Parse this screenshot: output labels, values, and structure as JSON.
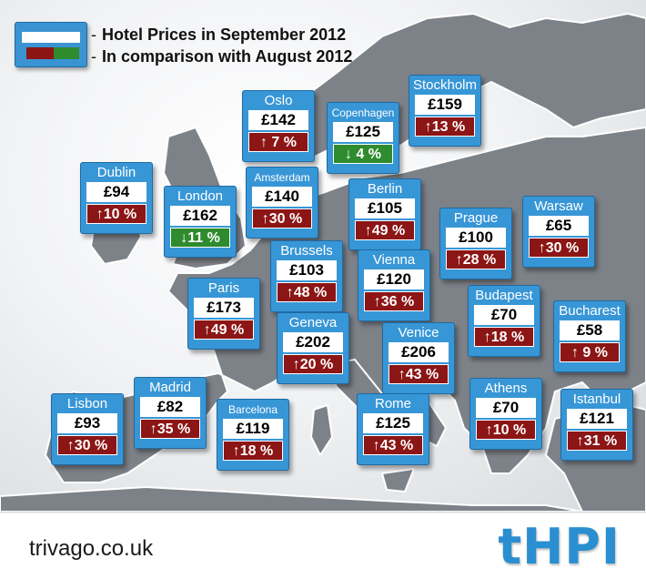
{
  "legend": {
    "title": "Hotel Prices in September 2012",
    "subtitle": "In comparison with August 2012",
    "colors": {
      "increase": "#8c1515",
      "decrease": "#2e8b2e",
      "card": "#3796d6"
    }
  },
  "cities": [
    {
      "id": "oslo",
      "name": "Oslo",
      "price": "£142",
      "change": "↑ 7 %",
      "direction": "up"
    },
    {
      "id": "copenhagen",
      "name": "Copenhagen",
      "price": "£125",
      "change": "↓ 4 %",
      "direction": "down"
    },
    {
      "id": "stockholm",
      "name": "Stockholm",
      "price": "£159",
      "change": "↑13 %",
      "direction": "up"
    },
    {
      "id": "dublin",
      "name": "Dublin",
      "price": "£94",
      "change": "↑10 %",
      "direction": "up"
    },
    {
      "id": "london",
      "name": "London",
      "price": "£162",
      "change": "↓11 %",
      "direction": "down"
    },
    {
      "id": "amsterdam",
      "name": "Amsterdam",
      "price": "£140",
      "change": "↑30 %",
      "direction": "up"
    },
    {
      "id": "berlin",
      "name": "Berlin",
      "price": "£105",
      "change": "↑49 %",
      "direction": "up"
    },
    {
      "id": "prague",
      "name": "Prague",
      "price": "£100",
      "change": "↑28 %",
      "direction": "up"
    },
    {
      "id": "warsaw",
      "name": "Warsaw",
      "price": "£65",
      "change": "↑30 %",
      "direction": "up"
    },
    {
      "id": "brussels",
      "name": "Brussels",
      "price": "£103",
      "change": "↑48 %",
      "direction": "up"
    },
    {
      "id": "vienna",
      "name": "Vienna",
      "price": "£120",
      "change": "↑36 %",
      "direction": "up"
    },
    {
      "id": "paris",
      "name": "Paris",
      "price": "£173",
      "change": "↑49 %",
      "direction": "up"
    },
    {
      "id": "budapest",
      "name": "Budapest",
      "price": "£70",
      "change": "↑18 %",
      "direction": "up"
    },
    {
      "id": "bucharest",
      "name": "Bucharest",
      "price": "£58",
      "change": "↑ 9 %",
      "direction": "up"
    },
    {
      "id": "geneva",
      "name": "Geneva",
      "price": "£202",
      "change": "↑20 %",
      "direction": "up"
    },
    {
      "id": "venice",
      "name": "Venice",
      "price": "£206",
      "change": "↑43 %",
      "direction": "up"
    },
    {
      "id": "madrid",
      "name": "Madrid",
      "price": "£82",
      "change": "↑35 %",
      "direction": "up"
    },
    {
      "id": "lisbon",
      "name": "Lisbon",
      "price": "£93",
      "change": "↑30 %",
      "direction": "up"
    },
    {
      "id": "barcelona",
      "name": "Barcelona",
      "price": "£119",
      "change": "↑18 %",
      "direction": "up"
    },
    {
      "id": "rome",
      "name": "Rome",
      "price": "£125",
      "change": "↑43 %",
      "direction": "up"
    },
    {
      "id": "athens",
      "name": "Athens",
      "price": "£70",
      "change": "↑10 %",
      "direction": "up"
    },
    {
      "id": "istanbul",
      "name": "Istanbul",
      "price": "£121",
      "change": "↑31 %",
      "direction": "up"
    }
  ],
  "footer": {
    "site": "trivago.co.uk",
    "logo": "tHPI"
  }
}
